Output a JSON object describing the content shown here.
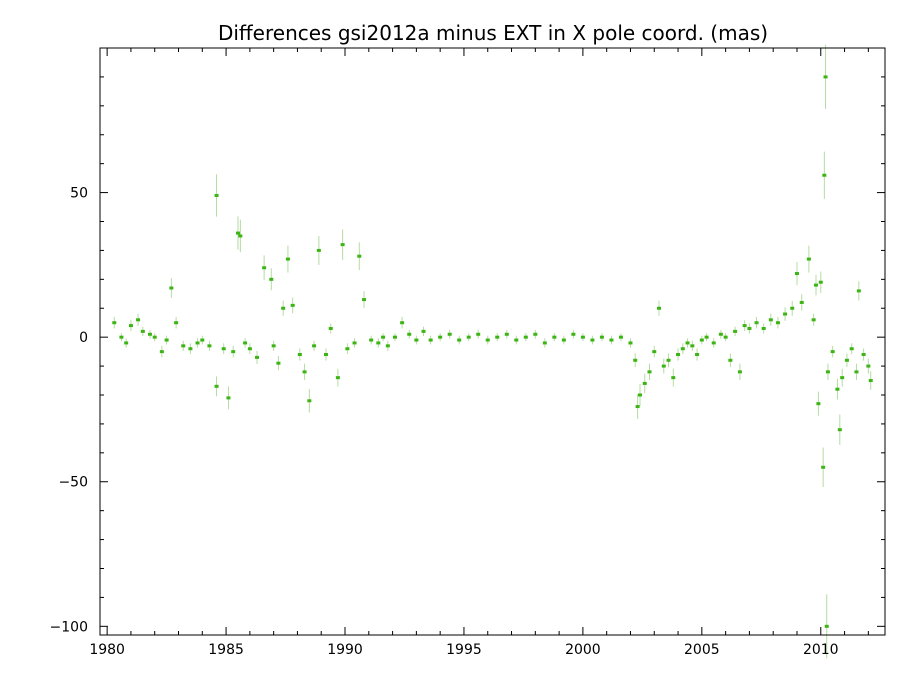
{
  "chart_data": {
    "type": "scatter",
    "title": "Differences gsi2012a minus EXT in X pole coord. (mas)",
    "xlabel": "",
    "ylabel": "",
    "xlim": [
      1979.7,
      2012.7
    ],
    "ylim": [
      -103,
      100
    ],
    "x_ticks": [
      1980,
      1985,
      1990,
      1995,
      2000,
      2005,
      2010
    ],
    "y_ticks": [
      50,
      0,
      -50,
      -100
    ],
    "y_tick_labels": [
      "50",
      "0",
      "−50",
      "−100"
    ],
    "colors": {
      "points": "#3cb414",
      "error_bars": "#b4dca0",
      "axes": "#000000"
    },
    "grid": false,
    "series": [
      {
        "points": [
          [
            1980.3,
            5
          ],
          [
            1980.6,
            0
          ],
          [
            1980.8,
            -2
          ],
          [
            1981.0,
            4
          ],
          [
            1981.3,
            6
          ],
          [
            1981.5,
            2
          ],
          [
            1981.8,
            1
          ],
          [
            1982.0,
            0
          ],
          [
            1982.3,
            -5
          ],
          [
            1982.5,
            -1
          ],
          [
            1982.7,
            17
          ],
          [
            1982.9,
            5
          ],
          [
            1983.2,
            -3
          ],
          [
            1983.5,
            -4
          ],
          [
            1983.8,
            -2
          ],
          [
            1984.0,
            -1
          ],
          [
            1984.3,
            -3
          ],
          [
            1984.6,
            49
          ],
          [
            1984.6,
            -17
          ],
          [
            1984.9,
            -4
          ],
          [
            1985.1,
            -21
          ],
          [
            1985.3,
            -5
          ],
          [
            1985.5,
            36
          ],
          [
            1985.6,
            35
          ],
          [
            1985.8,
            -2
          ],
          [
            1986.0,
            -4
          ],
          [
            1986.3,
            -7
          ],
          [
            1986.6,
            24
          ],
          [
            1986.9,
            20
          ],
          [
            1987.0,
            -3
          ],
          [
            1987.2,
            -9
          ],
          [
            1987.4,
            10
          ],
          [
            1987.6,
            27
          ],
          [
            1987.8,
            11
          ],
          [
            1988.1,
            -6
          ],
          [
            1988.3,
            -12
          ],
          [
            1988.5,
            -22
          ],
          [
            1988.7,
            -3
          ],
          [
            1988.9,
            30
          ],
          [
            1989.2,
            -6
          ],
          [
            1989.4,
            3
          ],
          [
            1989.7,
            -14
          ],
          [
            1989.9,
            32
          ],
          [
            1990.1,
            -4
          ],
          [
            1990.4,
            -2
          ],
          [
            1990.6,
            28
          ],
          [
            1990.8,
            13
          ],
          [
            1991.1,
            -1
          ],
          [
            1991.4,
            -2
          ],
          [
            1991.6,
            0
          ],
          [
            1991.8,
            -3
          ],
          [
            1992.1,
            0
          ],
          [
            1992.4,
            5
          ],
          [
            1992.7,
            1
          ],
          [
            1993.0,
            -1
          ],
          [
            1993.3,
            2
          ],
          [
            1993.6,
            -1
          ],
          [
            1994.0,
            0
          ],
          [
            1994.4,
            1
          ],
          [
            1994.8,
            -1
          ],
          [
            1995.2,
            0
          ],
          [
            1995.6,
            1
          ],
          [
            1996.0,
            -1
          ],
          [
            1996.4,
            0
          ],
          [
            1996.8,
            1
          ],
          [
            1997.2,
            -1
          ],
          [
            1997.6,
            0
          ],
          [
            1998.0,
            1
          ],
          [
            1998.4,
            -2
          ],
          [
            1998.8,
            0
          ],
          [
            1999.2,
            -1
          ],
          [
            1999.6,
            1
          ],
          [
            2000.0,
            0
          ],
          [
            2000.4,
            -1
          ],
          [
            2000.8,
            0
          ],
          [
            2001.2,
            -1
          ],
          [
            2001.6,
            0
          ],
          [
            2002.0,
            -2
          ],
          [
            2002.2,
            -8
          ],
          [
            2002.3,
            -24
          ],
          [
            2002.4,
            -20
          ],
          [
            2002.6,
            -16
          ],
          [
            2002.8,
            -12
          ],
          [
            2003.0,
            -5
          ],
          [
            2003.2,
            10
          ],
          [
            2003.4,
            -10
          ],
          [
            2003.6,
            -8
          ],
          [
            2003.8,
            -14
          ],
          [
            2004.0,
            -6
          ],
          [
            2004.2,
            -4
          ],
          [
            2004.4,
            -2
          ],
          [
            2004.6,
            -3
          ],
          [
            2004.8,
            -6
          ],
          [
            2005.0,
            -1
          ],
          [
            2005.2,
            0
          ],
          [
            2005.5,
            -2
          ],
          [
            2005.8,
            1
          ],
          [
            2006.0,
            0
          ],
          [
            2006.2,
            -8
          ],
          [
            2006.4,
            2
          ],
          [
            2006.6,
            -12
          ],
          [
            2006.8,
            4
          ],
          [
            2007.0,
            3
          ],
          [
            2007.3,
            5
          ],
          [
            2007.6,
            3
          ],
          [
            2007.9,
            6
          ],
          [
            2008.2,
            5
          ],
          [
            2008.5,
            8
          ],
          [
            2008.8,
            10
          ],
          [
            2009.0,
            22
          ],
          [
            2009.2,
            12
          ],
          [
            2009.5,
            27
          ],
          [
            2009.7,
            6
          ],
          [
            2009.8,
            18
          ],
          [
            2009.9,
            -23
          ],
          [
            2010.0,
            19
          ],
          [
            2010.1,
            -45
          ],
          [
            2010.15,
            56
          ],
          [
            2010.2,
            90
          ],
          [
            2010.25,
            -100
          ],
          [
            2010.3,
            -12
          ],
          [
            2010.5,
            -5
          ],
          [
            2010.7,
            -18
          ],
          [
            2010.8,
            -32
          ],
          [
            2010.9,
            -14
          ],
          [
            2011.1,
            -8
          ],
          [
            2011.3,
            -4
          ],
          [
            2011.5,
            -12
          ],
          [
            2011.6,
            16
          ],
          [
            2011.8,
            -6
          ],
          [
            2012.0,
            -10
          ],
          [
            2012.1,
            -15
          ]
        ]
      }
    ]
  }
}
